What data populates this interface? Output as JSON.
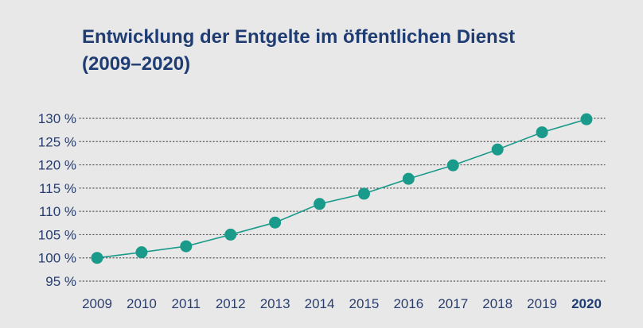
{
  "chart_data": {
    "type": "line",
    "title_line1": "Entwicklung der Entgelte im öffentlichen Dienst",
    "title_line2": "(2009–2020)",
    "categories": [
      "2009",
      "2010",
      "2011",
      "2012",
      "2013",
      "2014",
      "2015",
      "2016",
      "2017",
      "2018",
      "2019",
      "2020"
    ],
    "values": [
      100,
      101.2,
      102.5,
      105,
      107.6,
      111.6,
      113.8,
      117,
      119.9,
      123.3,
      127,
      129.8
    ],
    "ylim": [
      95,
      130
    ],
    "yticks": [
      95,
      100,
      105,
      110,
      115,
      120,
      125,
      130
    ],
    "ytick_labels": [
      "95 %",
      "100 %",
      "105 %",
      "110 %",
      "115 %",
      "120 %",
      "125 %",
      "130 %"
    ],
    "highlight_category": "2020",
    "grid": true,
    "colors": {
      "line": "#1a9a8a",
      "marker": "#1a9a8a",
      "grid": "#555555",
      "text": "#1f3d73"
    }
  }
}
